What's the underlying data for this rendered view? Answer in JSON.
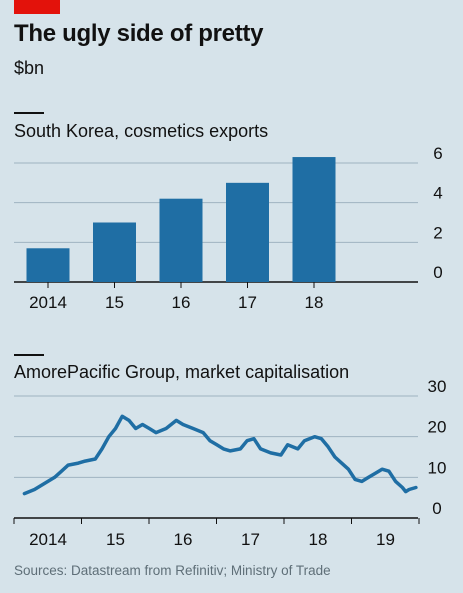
{
  "header": {
    "title": "The ugly side of pretty",
    "subtitle": "$bn"
  },
  "source": "Sources: Datastream from Refinitiv; Ministry of Trade",
  "colors": {
    "bar": "#1f6ea4",
    "line": "#1f6ea4",
    "grid": "#9fb3c0",
    "accent": "#e3120b",
    "background": "#d6e3ea"
  },
  "chart_data": [
    {
      "type": "bar",
      "title": "South Korea, cosmetics exports",
      "categories": [
        "2014",
        "15",
        "16",
        "17",
        "18"
      ],
      "values": [
        1.7,
        3.0,
        4.2,
        5.0,
        6.3
      ],
      "ylim": [
        0,
        6
      ],
      "yticks": [
        "0",
        "2",
        "4",
        "6"
      ],
      "grid": true
    },
    {
      "type": "line",
      "title": "AmorePacific Group, market capitalisation",
      "x_labels": [
        "2014",
        "15",
        "16",
        "17",
        "18",
        "19"
      ],
      "ylim": [
        0,
        30
      ],
      "yticks": [
        "0",
        "10",
        "20",
        "30"
      ],
      "grid": true,
      "series": [
        {
          "values": [
            [
              2013.65,
              6
            ],
            [
              2013.8,
              7
            ],
            [
              2013.95,
              8.5
            ],
            [
              2014.1,
              10
            ],
            [
              2014.2,
              11.5
            ],
            [
              2014.3,
              13
            ],
            [
              2014.45,
              13.5
            ],
            [
              2014.55,
              14
            ],
            [
              2014.7,
              14.5
            ],
            [
              2014.8,
              17
            ],
            [
              2014.9,
              20
            ],
            [
              2015.0,
              22
            ],
            [
              2015.1,
              25
            ],
            [
              2015.2,
              24
            ],
            [
              2015.3,
              22
            ],
            [
              2015.4,
              23
            ],
            [
              2015.5,
              22
            ],
            [
              2015.6,
              21
            ],
            [
              2015.75,
              22
            ],
            [
              2015.9,
              24
            ],
            [
              2016.0,
              23
            ],
            [
              2016.15,
              22
            ],
            [
              2016.3,
              21
            ],
            [
              2016.4,
              19
            ],
            [
              2016.5,
              18
            ],
            [
              2016.6,
              17
            ],
            [
              2016.7,
              16.5
            ],
            [
              2016.85,
              17
            ],
            [
              2016.95,
              19
            ],
            [
              2017.05,
              19.5
            ],
            [
              2017.15,
              17
            ],
            [
              2017.3,
              16
            ],
            [
              2017.45,
              15.5
            ],
            [
              2017.55,
              18
            ],
            [
              2017.7,
              17
            ],
            [
              2017.8,
              19
            ],
            [
              2017.95,
              20
            ],
            [
              2018.05,
              19.5
            ],
            [
              2018.15,
              17.5
            ],
            [
              2018.25,
              15
            ],
            [
              2018.35,
              13.5
            ],
            [
              2018.45,
              12
            ],
            [
              2018.55,
              9.5
            ],
            [
              2018.65,
              9
            ],
            [
              2018.75,
              10
            ],
            [
              2018.85,
              11
            ],
            [
              2018.95,
              12
            ],
            [
              2019.05,
              11.5
            ],
            [
              2019.15,
              9
            ],
            [
              2019.25,
              7.5
            ],
            [
              2019.3,
              6.5
            ],
            [
              2019.35,
              7
            ],
            [
              2019.45,
              7.5
            ]
          ]
        }
      ]
    }
  ]
}
